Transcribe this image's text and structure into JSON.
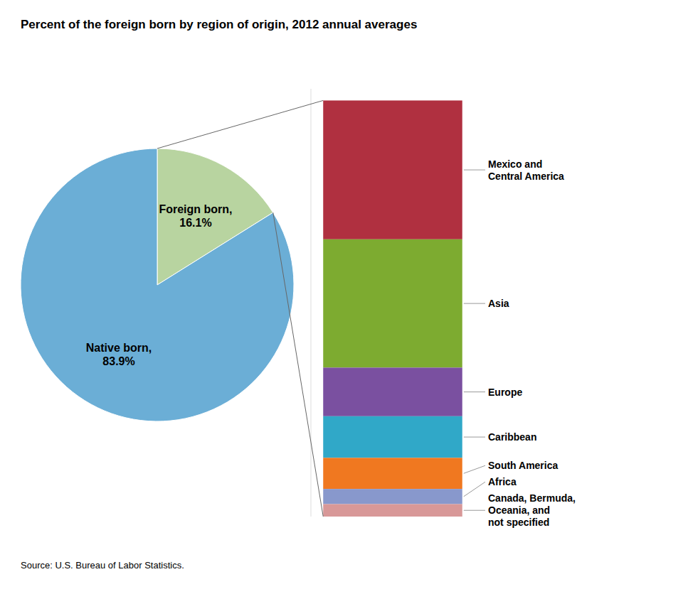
{
  "chart_data": [
    {
      "type": "pie",
      "title": "Percent of the foreign born by region of origin, 2012 annual averages",
      "annotations": [
        "Source: U.S. Bureau of Labor Statistics."
      ],
      "categories": [
        "Foreign born",
        "Native born"
      ],
      "values": [
        16.1,
        83.9
      ],
      "value_labels": [
        "Foreign born,\n16.1%",
        "Native born,\n83.9%"
      ],
      "colors": [
        "#b8d4a0",
        "#6baed6"
      ],
      "data_labels": true
    },
    {
      "type": "bar",
      "stacked": true,
      "categories": [
        null
      ],
      "series": [
        {
          "name": "Mexico and\nCentral America",
          "color": "#b03040",
          "values": [
            0.357
          ]
        },
        {
          "name": "Asia",
          "color": "#7dab30",
          "values": [
            0.33
          ]
        },
        {
          "name": "Europe",
          "color": "#7a50a0",
          "values": [
            0.125
          ]
        },
        {
          "name": "Caribbean",
          "color": "#30a8c8",
          "values": [
            0.107
          ]
        },
        {
          "name": "South America",
          "color": "#f07820",
          "values": [
            0.08
          ]
        },
        {
          "name": "Africa",
          "color": "#8898cc",
          "values": [
            0.039
          ]
        },
        {
          "name": "Canada, Bermuda,\nOceania, and\nnot specified",
          "color": "#d89898",
          "values": [
            0.032
          ]
        }
      ],
      "ylim": [
        0,
        1.1
      ],
      "tick_labels": false
    }
  ]
}
